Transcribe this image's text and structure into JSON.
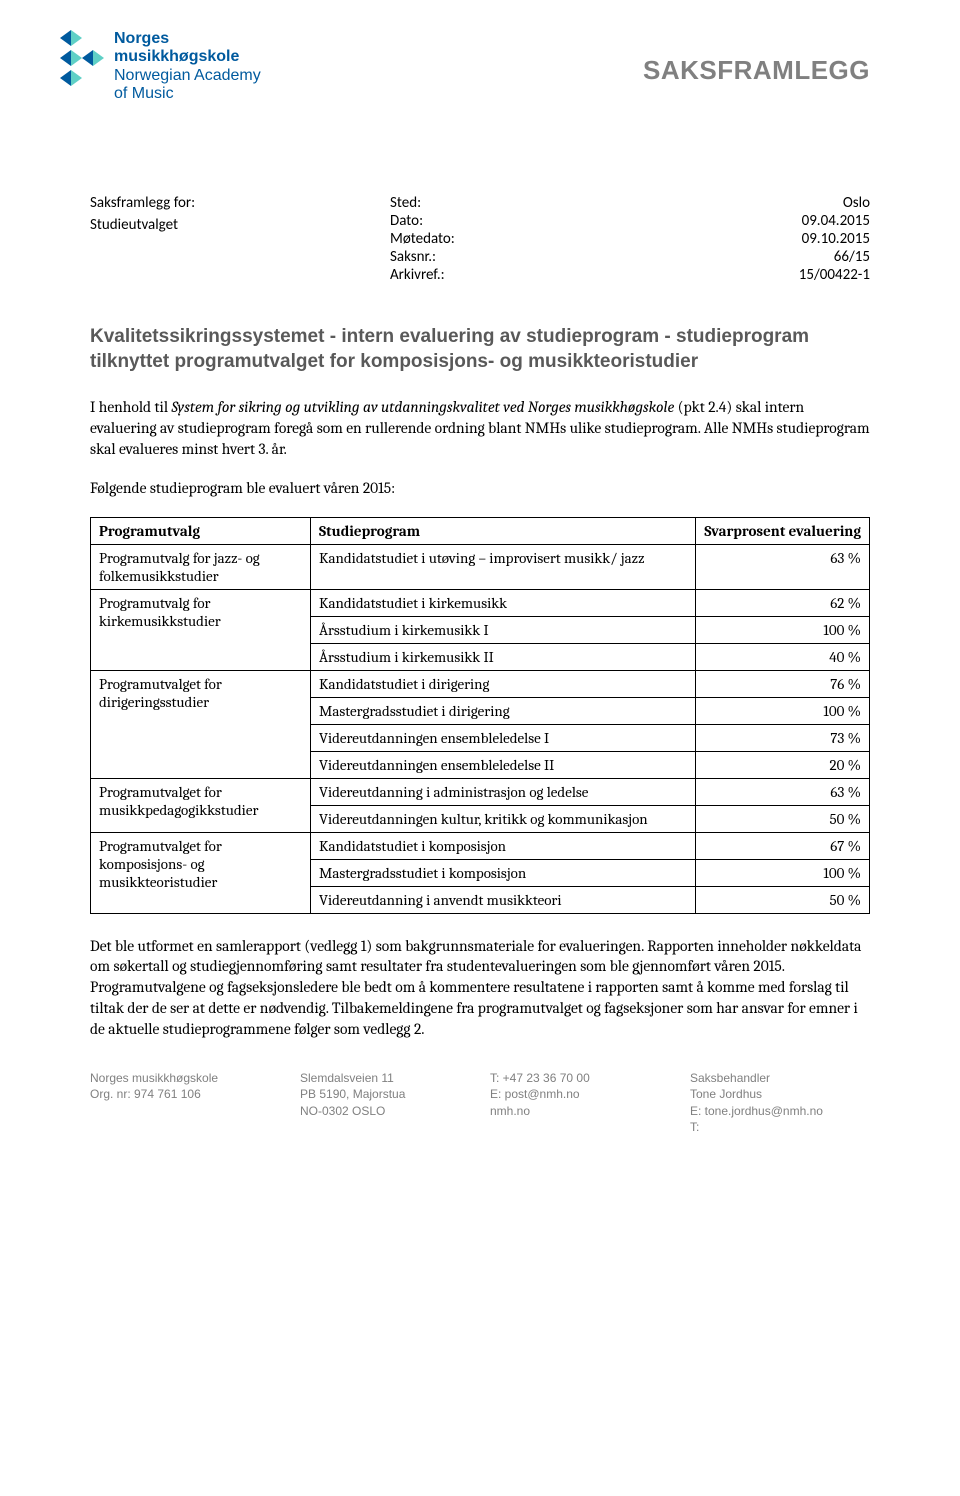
{
  "logo": {
    "line1": "Norges",
    "line2": "musikkhøgskole",
    "line3": "Norwegian Academy",
    "line4": "of Music",
    "color_primary": "#005a9e",
    "color_accent": "#5fd0c6"
  },
  "doc_title": "SAKSFRAMLEGG",
  "meta": {
    "left_label1": "Saksframlegg for:",
    "left_label2": "Studieutvalget",
    "rows": [
      {
        "label": "Sted:",
        "value": "Oslo"
      },
      {
        "label": "Dato:",
        "value": "09.04.2015"
      },
      {
        "label": "Møtedato:",
        "value": "09.10.2015"
      },
      {
        "label": "Saksnr.:",
        "value": "66/15"
      },
      {
        "label": "Arkivref.:",
        "value": "15/00422-1"
      }
    ]
  },
  "section_title": "Kvalitetssikringssystemet - intern evaluering av studieprogram - studieprogram tilknyttet programutvalget for komposisjons- og musikkteoristudier",
  "para1_pre": "I henhold til ",
  "para1_italic": "System for sikring og utvikling av utdanningskvalitet ved Norges musikkhøgskole",
  "para1_post": " (pkt 2.4) skal intern evaluering av studieprogram foregå som en rullerende ordning blant NMHs ulike studieprogram. Alle NMHs studieprogram skal evalueres minst hvert 3. år.",
  "para2": "Følgende studieprogram ble evaluert våren 2015:",
  "table": {
    "headers": {
      "c1": "Programutvalg",
      "c2": "Studieprogram",
      "c3": "Svarprosent evaluering"
    },
    "groups": [
      {
        "program": "Programutvalg for jazz- og folkemusikkstudier",
        "rows": [
          {
            "study": "Kandidatstudiet i utøving – improvisert musikk/ jazz",
            "pct": "63 %"
          }
        ]
      },
      {
        "program": "Programutvalg for kirkemusikkstudier",
        "rows": [
          {
            "study": "Kandidatstudiet i kirkemusikk",
            "pct": "62 %"
          },
          {
            "study": "Årsstudium i kirkemusikk I",
            "pct": "100 %"
          },
          {
            "study": "Årsstudium i kirkemusikk II",
            "pct": "40 %"
          }
        ]
      },
      {
        "program": "Programutvalget for dirigeringsstudier",
        "rows": [
          {
            "study": "Kandidatstudiet i dirigering",
            "pct": "76 %"
          },
          {
            "study": "Mastergradsstudiet i dirigering",
            "pct": "100 %"
          },
          {
            "study": "Videreutdanningen ensembleledelse I",
            "pct": "73 %"
          },
          {
            "study": "Videreutdanningen ensembleledelse II",
            "pct": "20 %"
          }
        ]
      },
      {
        "program": "Programutvalget for musikkpedagogikkstudier",
        "rows": [
          {
            "study": "Videreutdanning i administrasjon og ledelse",
            "pct": "63 %"
          },
          {
            "study": "Videreutdanningen kultur, kritikk og kommunikasjon",
            "pct": "50 %"
          }
        ]
      },
      {
        "program": "Programutvalget for komposisjons- og musikkteoristudier",
        "rows": [
          {
            "study": "Kandidatstudiet i komposisjon",
            "pct": "67 %"
          },
          {
            "study": "Mastergradsstudiet i komposisjon",
            "pct": "100 %"
          },
          {
            "study": "Videreutdanning i anvendt musikkteori",
            "pct": "50 %"
          }
        ]
      }
    ]
  },
  "para3": "Det ble utformet en samlerapport (vedlegg 1) som bakgrunnsmateriale for evalueringen. Rapporten inneholder nøkkeldata om søkertall og studiegjennomføring samt resultater fra studentevalueringen som ble gjennomført våren 2015. Programutvalgene og fagseksjonsledere ble bedt om å kommentere resultatene i rapporten samt å komme med forslag til tiltak der de ser at dette er nødvendig. Tilbakemeldingene fra programutvalget og fagseksjoner som har ansvar for emner i de aktuelle studieprogrammene følger som vedlegg 2.",
  "footer": {
    "c1a": "Norges musikkhøgskole",
    "c1b": "Org. nr: 974 761 106",
    "c2a": "Slemdalsveien 11",
    "c2b": "PB 5190, Majorstua",
    "c2c": "NO-0302 OSLO",
    "c3a": "T: +47 23 36 70 00",
    "c3b": "E: post@nmh.no",
    "c3c": "nmh.no",
    "c4a": "Saksbehandler",
    "c4b": "Tone Jordhus",
    "c4c": "E: tone.jordhus@nmh.no",
    "c4d": "T:"
  }
}
